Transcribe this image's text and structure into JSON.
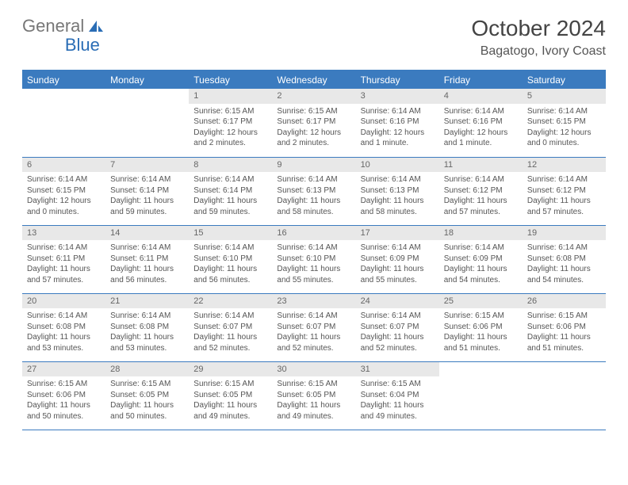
{
  "logo": {
    "general": "General",
    "blue": "Blue"
  },
  "title": "October 2024",
  "location": "Bagatogo, Ivory Coast",
  "colors": {
    "accent": "#3b7bbf",
    "header_row_bg": "#e8e8e8",
    "text": "#555555",
    "background": "#ffffff"
  },
  "weekdays": [
    "Sunday",
    "Monday",
    "Tuesday",
    "Wednesday",
    "Thursday",
    "Friday",
    "Saturday"
  ],
  "weeks": [
    [
      null,
      null,
      {
        "n": "1",
        "sr": "Sunrise: 6:15 AM",
        "ss": "Sunset: 6:17 PM",
        "dl": "Daylight: 12 hours and 2 minutes."
      },
      {
        "n": "2",
        "sr": "Sunrise: 6:15 AM",
        "ss": "Sunset: 6:17 PM",
        "dl": "Daylight: 12 hours and 2 minutes."
      },
      {
        "n": "3",
        "sr": "Sunrise: 6:14 AM",
        "ss": "Sunset: 6:16 PM",
        "dl": "Daylight: 12 hours and 1 minute."
      },
      {
        "n": "4",
        "sr": "Sunrise: 6:14 AM",
        "ss": "Sunset: 6:16 PM",
        "dl": "Daylight: 12 hours and 1 minute."
      },
      {
        "n": "5",
        "sr": "Sunrise: 6:14 AM",
        "ss": "Sunset: 6:15 PM",
        "dl": "Daylight: 12 hours and 0 minutes."
      }
    ],
    [
      {
        "n": "6",
        "sr": "Sunrise: 6:14 AM",
        "ss": "Sunset: 6:15 PM",
        "dl": "Daylight: 12 hours and 0 minutes."
      },
      {
        "n": "7",
        "sr": "Sunrise: 6:14 AM",
        "ss": "Sunset: 6:14 PM",
        "dl": "Daylight: 11 hours and 59 minutes."
      },
      {
        "n": "8",
        "sr": "Sunrise: 6:14 AM",
        "ss": "Sunset: 6:14 PM",
        "dl": "Daylight: 11 hours and 59 minutes."
      },
      {
        "n": "9",
        "sr": "Sunrise: 6:14 AM",
        "ss": "Sunset: 6:13 PM",
        "dl": "Daylight: 11 hours and 58 minutes."
      },
      {
        "n": "10",
        "sr": "Sunrise: 6:14 AM",
        "ss": "Sunset: 6:13 PM",
        "dl": "Daylight: 11 hours and 58 minutes."
      },
      {
        "n": "11",
        "sr": "Sunrise: 6:14 AM",
        "ss": "Sunset: 6:12 PM",
        "dl": "Daylight: 11 hours and 57 minutes."
      },
      {
        "n": "12",
        "sr": "Sunrise: 6:14 AM",
        "ss": "Sunset: 6:12 PM",
        "dl": "Daylight: 11 hours and 57 minutes."
      }
    ],
    [
      {
        "n": "13",
        "sr": "Sunrise: 6:14 AM",
        "ss": "Sunset: 6:11 PM",
        "dl": "Daylight: 11 hours and 57 minutes."
      },
      {
        "n": "14",
        "sr": "Sunrise: 6:14 AM",
        "ss": "Sunset: 6:11 PM",
        "dl": "Daylight: 11 hours and 56 minutes."
      },
      {
        "n": "15",
        "sr": "Sunrise: 6:14 AM",
        "ss": "Sunset: 6:10 PM",
        "dl": "Daylight: 11 hours and 56 minutes."
      },
      {
        "n": "16",
        "sr": "Sunrise: 6:14 AM",
        "ss": "Sunset: 6:10 PM",
        "dl": "Daylight: 11 hours and 55 minutes."
      },
      {
        "n": "17",
        "sr": "Sunrise: 6:14 AM",
        "ss": "Sunset: 6:09 PM",
        "dl": "Daylight: 11 hours and 55 minutes."
      },
      {
        "n": "18",
        "sr": "Sunrise: 6:14 AM",
        "ss": "Sunset: 6:09 PM",
        "dl": "Daylight: 11 hours and 54 minutes."
      },
      {
        "n": "19",
        "sr": "Sunrise: 6:14 AM",
        "ss": "Sunset: 6:08 PM",
        "dl": "Daylight: 11 hours and 54 minutes."
      }
    ],
    [
      {
        "n": "20",
        "sr": "Sunrise: 6:14 AM",
        "ss": "Sunset: 6:08 PM",
        "dl": "Daylight: 11 hours and 53 minutes."
      },
      {
        "n": "21",
        "sr": "Sunrise: 6:14 AM",
        "ss": "Sunset: 6:08 PM",
        "dl": "Daylight: 11 hours and 53 minutes."
      },
      {
        "n": "22",
        "sr": "Sunrise: 6:14 AM",
        "ss": "Sunset: 6:07 PM",
        "dl": "Daylight: 11 hours and 52 minutes."
      },
      {
        "n": "23",
        "sr": "Sunrise: 6:14 AM",
        "ss": "Sunset: 6:07 PM",
        "dl": "Daylight: 11 hours and 52 minutes."
      },
      {
        "n": "24",
        "sr": "Sunrise: 6:14 AM",
        "ss": "Sunset: 6:07 PM",
        "dl": "Daylight: 11 hours and 52 minutes."
      },
      {
        "n": "25",
        "sr": "Sunrise: 6:15 AM",
        "ss": "Sunset: 6:06 PM",
        "dl": "Daylight: 11 hours and 51 minutes."
      },
      {
        "n": "26",
        "sr": "Sunrise: 6:15 AM",
        "ss": "Sunset: 6:06 PM",
        "dl": "Daylight: 11 hours and 51 minutes."
      }
    ],
    [
      {
        "n": "27",
        "sr": "Sunrise: 6:15 AM",
        "ss": "Sunset: 6:06 PM",
        "dl": "Daylight: 11 hours and 50 minutes."
      },
      {
        "n": "28",
        "sr": "Sunrise: 6:15 AM",
        "ss": "Sunset: 6:05 PM",
        "dl": "Daylight: 11 hours and 50 minutes."
      },
      {
        "n": "29",
        "sr": "Sunrise: 6:15 AM",
        "ss": "Sunset: 6:05 PM",
        "dl": "Daylight: 11 hours and 49 minutes."
      },
      {
        "n": "30",
        "sr": "Sunrise: 6:15 AM",
        "ss": "Sunset: 6:05 PM",
        "dl": "Daylight: 11 hours and 49 minutes."
      },
      {
        "n": "31",
        "sr": "Sunrise: 6:15 AM",
        "ss": "Sunset: 6:04 PM",
        "dl": "Daylight: 11 hours and 49 minutes."
      },
      null,
      null
    ]
  ]
}
